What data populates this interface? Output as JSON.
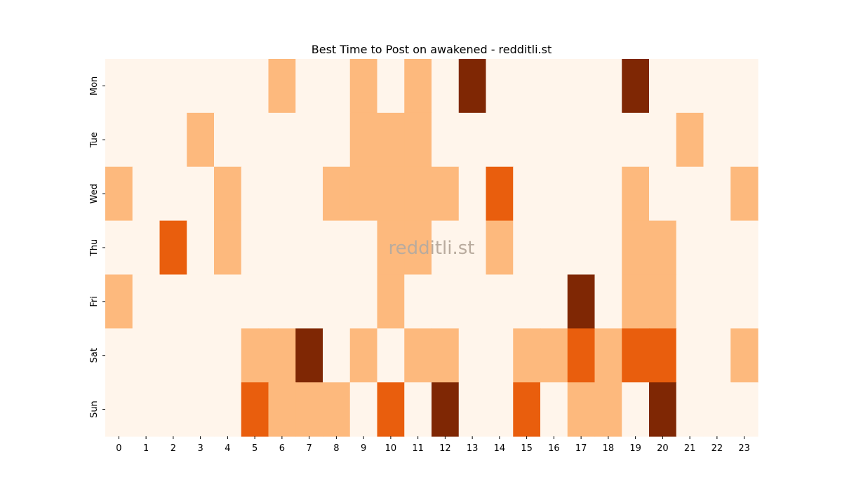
{
  "chart_data": {
    "type": "heatmap",
    "title": "Best Time to Post on awakened - redditli.st",
    "watermark": "redditli.st",
    "x_categories": [
      "0",
      "1",
      "2",
      "3",
      "4",
      "5",
      "6",
      "7",
      "8",
      "9",
      "10",
      "11",
      "12",
      "13",
      "14",
      "15",
      "16",
      "17",
      "18",
      "19",
      "20",
      "21",
      "22",
      "23"
    ],
    "y_categories": [
      "Mon",
      "Tue",
      "Wed",
      "Thu",
      "Fri",
      "Sat",
      "Sun"
    ],
    "values": [
      [
        0,
        0,
        0,
        0,
        0,
        0,
        1,
        0,
        0,
        1,
        0,
        1,
        0,
        3,
        0,
        0,
        0,
        0,
        0,
        3,
        0,
        0,
        0,
        0
      ],
      [
        0,
        0,
        0,
        1,
        0,
        0,
        0,
        0,
        0,
        1,
        1,
        1,
        0,
        0,
        0,
        0,
        0,
        0,
        0,
        0,
        0,
        1,
        0,
        0
      ],
      [
        1,
        0,
        0,
        0,
        1,
        0,
        0,
        0,
        1,
        1,
        1,
        1,
        1,
        0,
        2,
        0,
        0,
        0,
        0,
        1,
        0,
        0,
        0,
        1
      ],
      [
        0,
        0,
        2,
        0,
        1,
        0,
        0,
        0,
        0,
        0,
        1,
        1,
        0,
        0,
        1,
        0,
        0,
        0,
        0,
        1,
        1,
        0,
        0,
        0
      ],
      [
        1,
        0,
        0,
        0,
        0,
        0,
        0,
        0,
        0,
        0,
        1,
        0,
        0,
        0,
        0,
        0,
        0,
        3,
        0,
        1,
        1,
        0,
        0,
        0
      ],
      [
        0,
        0,
        0,
        0,
        0,
        1,
        1,
        3,
        0,
        1,
        0,
        1,
        1,
        0,
        0,
        1,
        1,
        2,
        1,
        2,
        2,
        0,
        0,
        1
      ],
      [
        0,
        0,
        0,
        0,
        0,
        2,
        1,
        1,
        1,
        0,
        2,
        0,
        3,
        0,
        0,
        2,
        0,
        1,
        1,
        0,
        3,
        0,
        0,
        0
      ]
    ],
    "color_scale": [
      "#fff5eb",
      "#fdb97d",
      "#e95e0d",
      "#7f2704"
    ],
    "xlabel": "",
    "ylabel": "",
    "grid": false,
    "colorbar": false
  }
}
